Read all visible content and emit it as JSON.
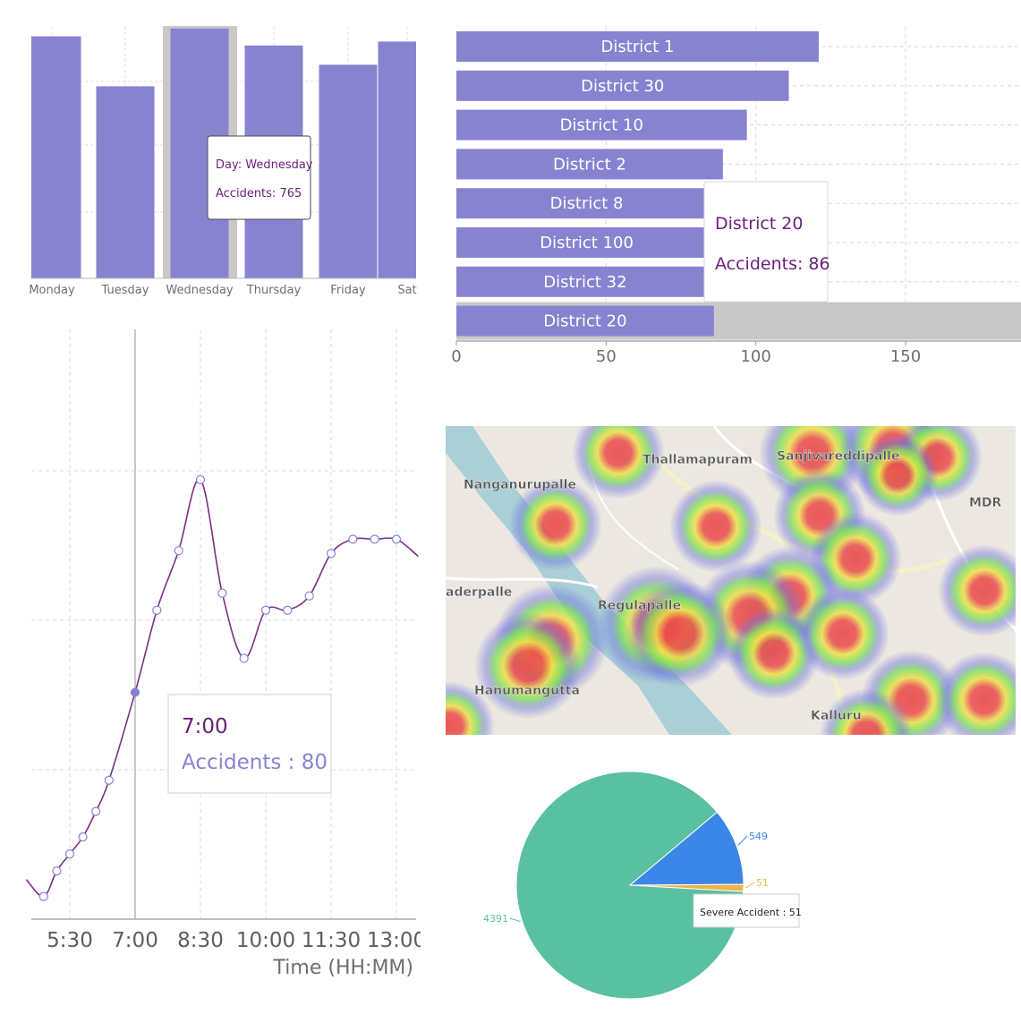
{
  "chart_data": [
    {
      "type": "bar",
      "id": "weekday",
      "categories": [
        "Monday",
        "Tuesday",
        "Wednesday",
        "Thursday",
        "Friday",
        "Sat"
      ],
      "values": [
        741,
        588,
        765,
        713,
        654,
        725
      ],
      "ylim": [
        0,
        770
      ],
      "grid": true,
      "highlight_category": "Wednesday",
      "tooltip": {
        "line1": "Day: Wednesday",
        "line2": "Accidents: 765"
      },
      "colors": {
        "bar": "#8783d1",
        "highlight": "#c8c8c8",
        "tooltip_text": "#6a1f7a"
      }
    },
    {
      "type": "bar",
      "orientation": "horizontal",
      "id": "district",
      "categories": [
        "District 1",
        "District 30",
        "District 10",
        "District 2",
        "District 8",
        "District 100",
        "District 32",
        "District 20"
      ],
      "values": [
        121,
        111,
        97,
        89,
        87,
        87,
        86,
        86
      ],
      "xticks": [
        0,
        50,
        100,
        150
      ],
      "xlim": [
        0,
        187
      ],
      "grid": true,
      "highlight_category": "District 20",
      "tooltip": {
        "line1": "District 20",
        "line2": "Accidents: 86"
      },
      "colors": {
        "bar": "#8783d1",
        "highlight": "#c8c8c8",
        "tooltip_text": "#6a1f7a"
      }
    },
    {
      "type": "line",
      "id": "time",
      "xlabel": "Time (HH:MM)",
      "xtick_labels": [
        "5:30",
        "7:00",
        "8:30",
        "10:00",
        "11:30",
        "13:00"
      ],
      "x": [
        "4:30",
        "4:54",
        "5:12",
        "5:30",
        "5:48",
        "6:06",
        "6:24",
        "7:00",
        "7:30",
        "8:00",
        "8:30",
        "9:00",
        "9:30",
        "10:00",
        "10:30",
        "11:00",
        "11:30",
        "12:00",
        "12:30",
        "13:00",
        "13:30"
      ],
      "y": [
        14,
        8,
        17,
        23,
        29,
        38,
        49,
        80,
        109,
        130,
        155,
        115,
        92,
        109,
        109,
        114,
        129,
        134,
        134,
        134,
        128
      ],
      "ylim": [
        0,
        160
      ],
      "grid": true,
      "highlight": {
        "x": "7:00",
        "y": 80
      },
      "tooltip": {
        "line1": "7:00",
        "line2": "Accidents : 80"
      },
      "colors": {
        "line": "#7d2d84",
        "marker_fill": "#ffffff",
        "marker_stroke": "#8783d1",
        "tooltip_title": "#6a1f7a",
        "tooltip_value": "#8783d1"
      }
    },
    {
      "type": "heatmap",
      "id": "map",
      "place_labels": [
        "Thallamapuram",
        "Sanjivareddipalle",
        "Nanganurupalle",
        "MDR",
        "aderpalle",
        "Regulapalle",
        "Hanumangutta",
        "Kalluru"
      ]
    },
    {
      "type": "pie",
      "id": "severity",
      "values": [
        549,
        51,
        4391
      ],
      "labels": [
        "549",
        "51",
        "4391"
      ],
      "colors": [
        "#3b87e8",
        "#f0b34a",
        "#59c0a2"
      ],
      "tooltip": {
        "line1": "Severe Accident : 51"
      }
    }
  ]
}
